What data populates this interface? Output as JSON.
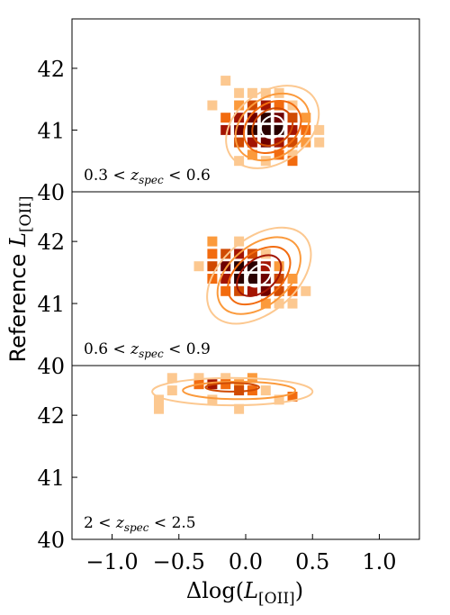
{
  "chart_data": {
    "type": "heatmap",
    "shared_xlabel": "Δlog(L[OII])",
    "shared_ylabel": "Reference L[OII]",
    "xlim": [
      -1.3,
      1.3
    ],
    "xticks": [
      -1.0,
      -0.5,
      0.0,
      0.5,
      1.0
    ],
    "xtick_labels": [
      "−1.0",
      "−0.5",
      "0.0",
      "0.5",
      "1.0"
    ],
    "colormap": [
      "#fcc890",
      "#fb9a3c",
      "#f26b0f",
      "#d04a02",
      "#a31503",
      "#6e0000",
      "#2a0000"
    ],
    "panels": [
      {
        "annotation": "0.3 < z_spec < 0.6",
        "ylim": [
          40,
          42.8
        ],
        "yticks": [
          40,
          41,
          42
        ],
        "ytick_labels": [
          "40",
          "41",
          "42"
        ],
        "bins": [
          {
            "x": -0.15,
            "y": 41.8,
            "level": 0
          },
          {
            "x": -0.05,
            "y": 41.6,
            "level": 0
          },
          {
            "x": 0.05,
            "y": 41.6,
            "level": 0
          },
          {
            "x": 0.15,
            "y": 41.6,
            "level": 0
          },
          {
            "x": 0.25,
            "y": 41.6,
            "level": 0
          },
          {
            "x": -0.25,
            "y": 41.4,
            "level": 0
          },
          {
            "x": 0.35,
            "y": 41.4,
            "level": 0
          },
          {
            "x": -0.15,
            "y": 41.2,
            "level": 2
          },
          {
            "x": -0.05,
            "y": 41.4,
            "level": 1
          },
          {
            "x": 0.05,
            "y": 41.4,
            "level": 3
          },
          {
            "x": 0.15,
            "y": 41.4,
            "level": 4
          },
          {
            "x": 0.25,
            "y": 41.4,
            "level": 2
          },
          {
            "x": -0.05,
            "y": 41.2,
            "level": 4
          },
          {
            "x": 0.05,
            "y": 41.2,
            "level": 5
          },
          {
            "x": 0.15,
            "y": 41.2,
            "level": 6
          },
          {
            "x": 0.25,
            "y": 41.2,
            "level": 5
          },
          {
            "x": 0.35,
            "y": 41.2,
            "level": 3
          },
          {
            "x": 0.45,
            "y": 41.2,
            "level": 1
          },
          {
            "x": -0.15,
            "y": 41.0,
            "level": 4
          },
          {
            "x": -0.05,
            "y": 41.0,
            "level": 5
          },
          {
            "x": 0.05,
            "y": 41.0,
            "level": 6
          },
          {
            "x": 0.15,
            "y": 41.0,
            "level": 6
          },
          {
            "x": 0.25,
            "y": 41.0,
            "level": 6
          },
          {
            "x": 0.35,
            "y": 41.0,
            "level": 4
          },
          {
            "x": 0.45,
            "y": 41.0,
            "level": 2
          },
          {
            "x": 0.55,
            "y": 41.0,
            "level": 0
          },
          {
            "x": -0.05,
            "y": 40.8,
            "level": 3
          },
          {
            "x": 0.05,
            "y": 40.8,
            "level": 4
          },
          {
            "x": 0.15,
            "y": 40.8,
            "level": 5
          },
          {
            "x": 0.25,
            "y": 40.8,
            "level": 4
          },
          {
            "x": 0.35,
            "y": 40.8,
            "level": 3
          },
          {
            "x": 0.45,
            "y": 40.8,
            "level": 1
          },
          {
            "x": 0.55,
            "y": 40.8,
            "level": 0
          },
          {
            "x": 0.05,
            "y": 40.6,
            "level": 1
          },
          {
            "x": 0.25,
            "y": 40.6,
            "level": 2
          },
          {
            "x": 0.35,
            "y": 40.6,
            "level": 0
          },
          {
            "x": -0.05,
            "y": 40.5,
            "level": 0
          },
          {
            "x": 0.15,
            "y": 40.5,
            "level": 0
          },
          {
            "x": 0.35,
            "y": 40.5,
            "level": 2
          }
        ],
        "contours": [
          {
            "cx": 0.2,
            "cy": 41.05,
            "rx": 0.38,
            "ry": 0.58,
            "tilt": -35,
            "level": 0
          },
          {
            "cx": 0.2,
            "cy": 41.05,
            "rx": 0.3,
            "ry": 0.48,
            "tilt": -35,
            "level": 1
          },
          {
            "cx": 0.2,
            "cy": 41.05,
            "rx": 0.23,
            "ry": 0.38,
            "tilt": -35,
            "level": 2
          },
          {
            "cx": 0.2,
            "cy": 41.05,
            "rx": 0.16,
            "ry": 0.28,
            "tilt": -35,
            "level": 3
          },
          {
            "cx": 0.2,
            "cy": 41.05,
            "rx": 0.09,
            "ry": 0.17,
            "tilt": -35,
            "level": 7
          }
        ]
      },
      {
        "annotation": "0.6 < z_spec < 0.9",
        "ylim": [
          40,
          42.8
        ],
        "yticks": [
          40,
          41,
          42
        ],
        "ytick_labels": [
          "40",
          "41",
          "42"
        ],
        "bins": [
          {
            "x": -0.25,
            "y": 42.0,
            "level": 1
          },
          {
            "x": -0.05,
            "y": 42.0,
            "level": 0
          },
          {
            "x": -0.25,
            "y": 41.8,
            "level": 2
          },
          {
            "x": -0.15,
            "y": 41.8,
            "level": 3
          },
          {
            "x": -0.05,
            "y": 41.8,
            "level": 4
          },
          {
            "x": 0.05,
            "y": 41.8,
            "level": 3
          },
          {
            "x": 0.15,
            "y": 41.8,
            "level": 0
          },
          {
            "x": -0.35,
            "y": 41.6,
            "level": 0
          },
          {
            "x": -0.25,
            "y": 41.6,
            "level": 3
          },
          {
            "x": -0.15,
            "y": 41.6,
            "level": 5
          },
          {
            "x": -0.05,
            "y": 41.6,
            "level": 6
          },
          {
            "x": 0.05,
            "y": 41.6,
            "level": 6
          },
          {
            "x": 0.15,
            "y": 41.6,
            "level": 4
          },
          {
            "x": 0.25,
            "y": 41.6,
            "level": 1
          },
          {
            "x": -0.25,
            "y": 41.4,
            "level": 2
          },
          {
            "x": -0.15,
            "y": 41.4,
            "level": 4
          },
          {
            "x": -0.05,
            "y": 41.4,
            "level": 6
          },
          {
            "x": 0.05,
            "y": 41.4,
            "level": 6
          },
          {
            "x": 0.15,
            "y": 41.4,
            "level": 5
          },
          {
            "x": 0.25,
            "y": 41.4,
            "level": 3
          },
          {
            "x": 0.35,
            "y": 41.4,
            "level": 1
          },
          {
            "x": -0.15,
            "y": 41.2,
            "level": 2
          },
          {
            "x": -0.05,
            "y": 41.2,
            "level": 3
          },
          {
            "x": 0.05,
            "y": 41.2,
            "level": 4
          },
          {
            "x": 0.15,
            "y": 41.2,
            "level": 5
          },
          {
            "x": 0.25,
            "y": 41.2,
            "level": 3
          },
          {
            "x": 0.35,
            "y": 41.2,
            "level": 2
          },
          {
            "x": 0.45,
            "y": 41.2,
            "level": 0
          },
          {
            "x": 0.15,
            "y": 41.0,
            "level": 1
          },
          {
            "x": 0.25,
            "y": 41.0,
            "level": 0
          },
          {
            "x": 0.35,
            "y": 41.0,
            "level": 0
          }
        ],
        "contours": [
          {
            "cx": 0.1,
            "cy": 41.45,
            "rx": 0.45,
            "ry": 0.6,
            "tilt": -40,
            "level": 0
          },
          {
            "cx": 0.1,
            "cy": 41.45,
            "rx": 0.36,
            "ry": 0.48,
            "tilt": -40,
            "level": 1
          },
          {
            "cx": 0.1,
            "cy": 41.45,
            "rx": 0.27,
            "ry": 0.36,
            "tilt": -40,
            "level": 2
          },
          {
            "cx": 0.1,
            "cy": 41.45,
            "rx": 0.19,
            "ry": 0.26,
            "tilt": -40,
            "level": 4
          },
          {
            "cx": 0.1,
            "cy": 41.45,
            "rx": 0.1,
            "ry": 0.15,
            "tilt": -40,
            "level": 7
          }
        ]
      },
      {
        "annotation": "2 < z_spec < 2.5",
        "ylim": [
          40,
          42.8
        ],
        "yticks": [
          40,
          41,
          42
        ],
        "ytick_labels": [
          "40",
          "41",
          "42"
        ],
        "bins": [
          {
            "x": -0.55,
            "y": 42.6,
            "level": 0
          },
          {
            "x": -0.35,
            "y": 42.6,
            "level": 0
          },
          {
            "x": -0.15,
            "y": 42.6,
            "level": 0
          },
          {
            "x": 0.05,
            "y": 42.6,
            "level": 1
          },
          {
            "x": -0.35,
            "y": 42.5,
            "level": 2
          },
          {
            "x": -0.25,
            "y": 42.5,
            "level": 4
          },
          {
            "x": -0.15,
            "y": 42.5,
            "level": 2
          },
          {
            "x": -0.05,
            "y": 42.5,
            "level": 1
          },
          {
            "x": -0.55,
            "y": 42.4,
            "level": 0
          },
          {
            "x": -0.05,
            "y": 42.4,
            "level": 3
          },
          {
            "x": 0.05,
            "y": 42.4,
            "level": 2
          },
          {
            "x": 0.15,
            "y": 42.4,
            "level": 0
          },
          {
            "x": 0.35,
            "y": 42.3,
            "level": 2
          },
          {
            "x": -0.65,
            "y": 42.25,
            "level": 0
          },
          {
            "x": -0.25,
            "y": 42.25,
            "level": 0
          },
          {
            "x": 0.25,
            "y": 42.25,
            "level": 0
          },
          {
            "x": -0.65,
            "y": 42.1,
            "level": 0
          },
          {
            "x": -0.05,
            "y": 42.1,
            "level": 0
          }
        ],
        "contours": [
          {
            "cx": -0.1,
            "cy": 42.38,
            "rx": 0.6,
            "ry": 0.22,
            "tilt": 0,
            "level": 0
          },
          {
            "cx": -0.05,
            "cy": 42.4,
            "rx": 0.42,
            "ry": 0.14,
            "tilt": 0,
            "level": 1
          },
          {
            "cx": -0.1,
            "cy": 42.45,
            "rx": 0.2,
            "ry": 0.07,
            "tilt": 0,
            "level": 3
          }
        ]
      }
    ]
  }
}
